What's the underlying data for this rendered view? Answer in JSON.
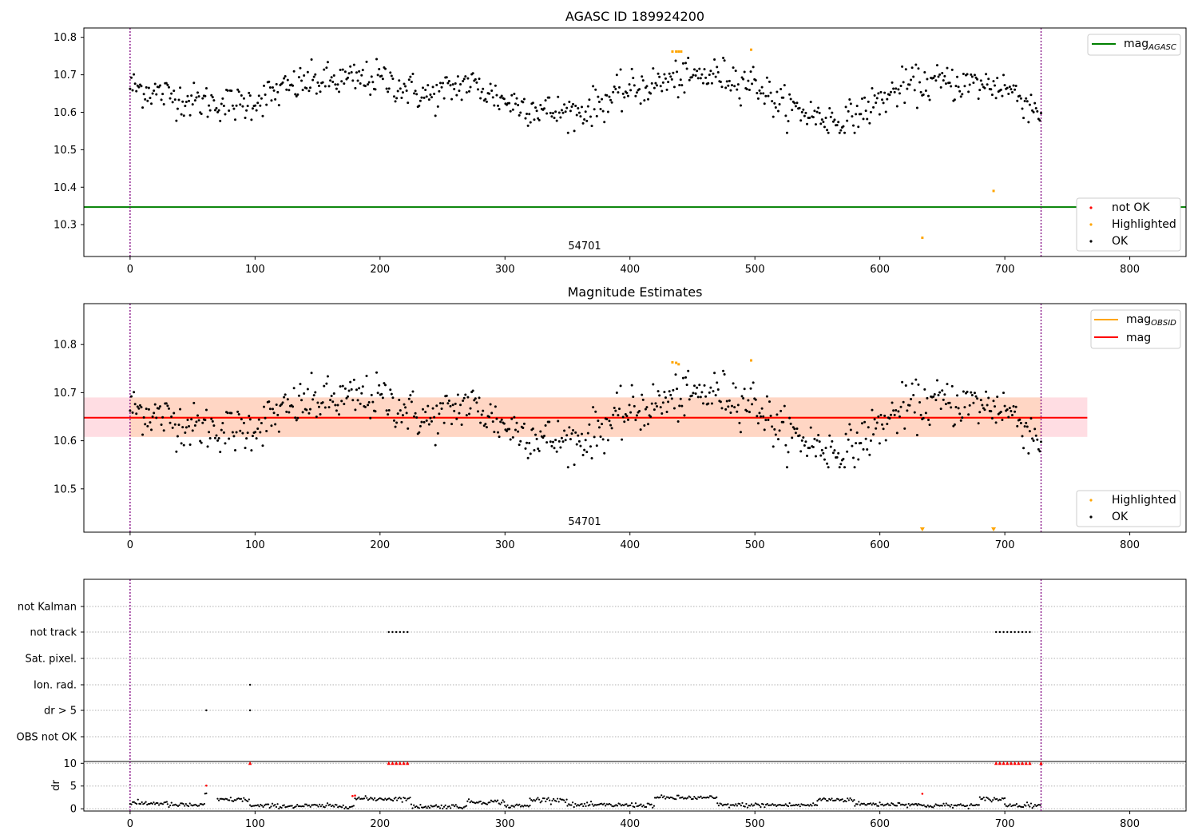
{
  "figure": {
    "title": "AGASC ID 189924200",
    "colors": {
      "ok": "#000000",
      "highlighted": "#ffa500",
      "not_ok": "#ff0000",
      "agasc_line": "#008000",
      "obs_line": "#ffa500",
      "mag_line": "#ff0000",
      "band_outer": "#ffdde3",
      "band_inner": "#ffd6c4",
      "obs_boundary": "#800080"
    }
  },
  "chart_data": [
    {
      "type": "scatter",
      "title": "AGASC ID 189924200",
      "xlim": [
        -37,
        845
      ],
      "ylim": [
        10.215,
        10.825
      ],
      "xticks": [
        0,
        100,
        200,
        300,
        400,
        500,
        600,
        700,
        800
      ],
      "yticks": [
        10.3,
        10.4,
        10.5,
        10.6,
        10.7,
        10.8
      ],
      "obs_boundaries": [
        0,
        729
      ],
      "obs_label": "54701",
      "obs_label_x": 364,
      "hlines": [
        {
          "name": "mag_AGASC",
          "y": 10.347,
          "color": "#008000"
        }
      ],
      "highlighted_points": [
        [
          434,
          10.762
        ],
        [
          437,
          10.762
        ],
        [
          439,
          10.762
        ],
        [
          441,
          10.762
        ],
        [
          497,
          10.767
        ],
        [
          634,
          10.265
        ],
        [
          691,
          10.39
        ]
      ],
      "legend": [
        {
          "label": "mag",
          "subscript": "AGASC",
          "marker": "line",
          "color": "#008000",
          "position": "top-right"
        },
        {
          "label": "not OK",
          "marker": "point",
          "color": "#ff0000",
          "position": "lower-right"
        },
        {
          "label": "Highlighted",
          "marker": "point",
          "color": "#ffa500",
          "position": "lower-right"
        },
        {
          "label": "OK",
          "marker": "point",
          "color": "#000000",
          "position": "lower-right"
        }
      ],
      "ok_points": {
        "n": 729,
        "x_start": 0,
        "x_end": 729,
        "trend": [
          [
            0,
            10.67
          ],
          [
            50,
            10.63
          ],
          [
            90,
            10.62
          ],
          [
            140,
            10.68
          ],
          [
            200,
            10.69
          ],
          [
            240,
            10.64
          ],
          [
            270,
            10.68
          ],
          [
            300,
            10.63
          ],
          [
            340,
            10.6
          ],
          [
            360,
            10.6
          ],
          [
            400,
            10.66
          ],
          [
            440,
            10.69
          ],
          [
            470,
            10.7
          ],
          [
            500,
            10.68
          ],
          [
            520,
            10.62
          ],
          [
            550,
            10.59
          ],
          [
            570,
            10.57
          ],
          [
            590,
            10.61
          ],
          [
            620,
            10.67
          ],
          [
            650,
            10.68
          ],
          [
            700,
            10.67
          ],
          [
            729,
            10.6
          ]
        ],
        "scatter_sd": 0.024
      }
    },
    {
      "type": "scatter",
      "title": "Magnitude Estimates",
      "xlim": [
        -37,
        845
      ],
      "ylim": [
        10.41,
        10.885
      ],
      "xticks": [
        0,
        100,
        200,
        300,
        400,
        500,
        600,
        700,
        800
      ],
      "yticks": [
        10.5,
        10.6,
        10.7,
        10.8
      ],
      "obs_boundaries": [
        0,
        729
      ],
      "obs_label": "54701",
      "obs_label_x": 364,
      "band": {
        "x": [
          -37,
          766
        ],
        "outer": [
          10.608,
          10.69
        ],
        "inner": [
          10.608,
          10.69
        ],
        "inner_x": [
          0,
          729
        ]
      },
      "hlines": [
        {
          "name": "mag_OBSID",
          "y": 10.648,
          "x": [
            0,
            729
          ],
          "color": "#ffa500"
        },
        {
          "name": "mag",
          "y": 10.648,
          "x": [
            -37,
            766
          ],
          "color": "#ff0000"
        }
      ],
      "highlighted_points": [
        [
          434,
          10.763
        ],
        [
          437,
          10.762
        ],
        [
          439,
          10.759
        ],
        [
          497,
          10.767
        ]
      ],
      "below_axis_markers": [
        634,
        691
      ],
      "legend": [
        {
          "label": "mag",
          "subscript": "OBSID",
          "marker": "line",
          "color": "#ffa500",
          "position": "top-right"
        },
        {
          "label": "mag",
          "marker": "line",
          "color": "#ff0000",
          "position": "top-right"
        },
        {
          "label": "Highlighted",
          "marker": "point",
          "color": "#ffa500",
          "position": "lower-right"
        },
        {
          "label": "OK",
          "marker": "point",
          "color": "#000000",
          "position": "lower-right"
        }
      ]
    },
    {
      "type": "scatter",
      "xlim": [
        -37,
        845
      ],
      "categories": [
        "not Kalman",
        "not track",
        "Sat. pixel.",
        "Ion. rad.",
        "dr > 5",
        "OBS not OK"
      ],
      "flags": {
        "not track": [
          207,
          210,
          213,
          216,
          219,
          222,
          693,
          696,
          699,
          702,
          705,
          708,
          711,
          714,
          717,
          720
        ],
        "Ion. rad.": [
          96
        ],
        "dr > 5": [
          61,
          96
        ]
      },
      "obs_boundaries": [
        0,
        729
      ]
    },
    {
      "type": "scatter",
      "ylabel": "dr",
      "xlim": [
        -37,
        845
      ],
      "ylim": [
        -0.5,
        10.4
      ],
      "yticks": [
        0,
        5,
        10
      ],
      "xticks": [
        0,
        100,
        200,
        300,
        400,
        500,
        600,
        700,
        800
      ],
      "obs_boundaries": [
        0,
        729
      ],
      "clipped_at": 10,
      "not_ok_points": [
        [
          61,
          5.1
        ],
        [
          96,
          10
        ],
        [
          178,
          2.8
        ],
        [
          180,
          2.9
        ],
        [
          207,
          10
        ],
        [
          210,
          10
        ],
        [
          213,
          10
        ],
        [
          216,
          10
        ],
        [
          219,
          10
        ],
        [
          222,
          10
        ],
        [
          634,
          3.3
        ],
        [
          693,
          10
        ],
        [
          696,
          10
        ],
        [
          699,
          10
        ],
        [
          702,
          10
        ],
        [
          705,
          10
        ],
        [
          708,
          10
        ],
        [
          711,
          10
        ],
        [
          714,
          10
        ],
        [
          717,
          10
        ],
        [
          720,
          10
        ],
        [
          729,
          10
        ]
      ],
      "ok_segments": [
        [
          0,
          30,
          1.2
        ],
        [
          30,
          60,
          0.8
        ],
        [
          60,
          62,
          3.0
        ],
        [
          70,
          96,
          2.0
        ],
        [
          96,
          180,
          0.6
        ],
        [
          180,
          225,
          2.2
        ],
        [
          225,
          270,
          0.5
        ],
        [
          270,
          300,
          1.5
        ],
        [
          300,
          320,
          0.6
        ],
        [
          320,
          350,
          2.0
        ],
        [
          350,
          420,
          0.8
        ],
        [
          420,
          470,
          2.4
        ],
        [
          470,
          550,
          0.8
        ],
        [
          550,
          580,
          2.0
        ],
        [
          580,
          630,
          1.0
        ],
        [
          630,
          680,
          0.7
        ],
        [
          680,
          700,
          2.1
        ],
        [
          700,
          729,
          0.8
        ]
      ]
    }
  ]
}
